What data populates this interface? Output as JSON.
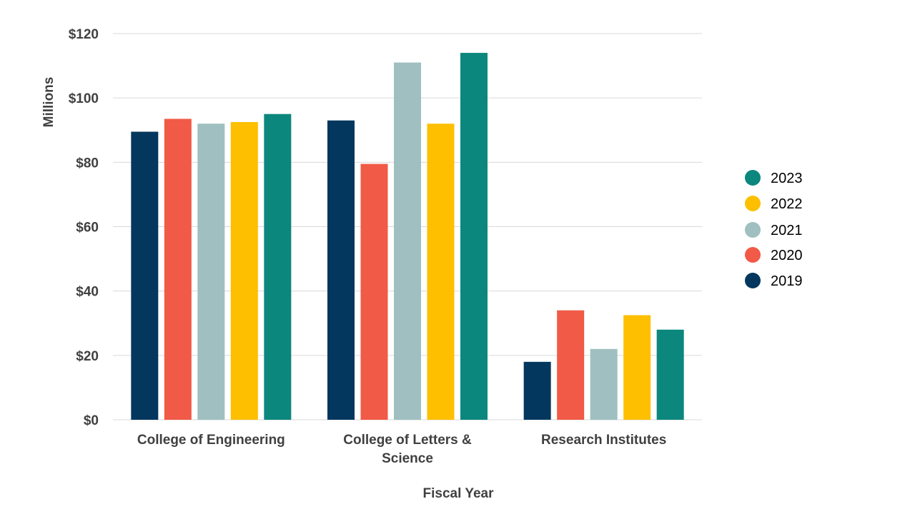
{
  "chart_data": {
    "type": "bar",
    "title": "",
    "xlabel": "Fiscal Year",
    "ylabel": "Millions",
    "ylim": [
      0,
      120
    ],
    "yticks": [
      0,
      20,
      40,
      60,
      80,
      100,
      120
    ],
    "ytick_labels": [
      "$0",
      "$20",
      "$40",
      "$60",
      "$80",
      "$100",
      "$120"
    ],
    "categories": [
      [
        "College of Engineering"
      ],
      [
        "College of Letters &",
        "Science"
      ],
      [
        "Research Institutes"
      ]
    ],
    "series": [
      {
        "name": "2019",
        "color": "#03375e",
        "values": [
          89.5,
          93,
          18
        ]
      },
      {
        "name": "2020",
        "color": "#f15a47",
        "values": [
          93.5,
          79.5,
          34
        ]
      },
      {
        "name": "2021",
        "color": "#9fbfc0",
        "values": [
          92,
          111,
          22
        ]
      },
      {
        "name": "2022",
        "color": "#fdbf00",
        "values": [
          92.5,
          92,
          32.5
        ]
      },
      {
        "name": "2023",
        "color": "#0b877d",
        "values": [
          95,
          114,
          28
        ]
      }
    ],
    "legend": {
      "placement": "right",
      "order": [
        "2023",
        "2022",
        "2021",
        "2020",
        "2019"
      ]
    },
    "grid": true
  }
}
